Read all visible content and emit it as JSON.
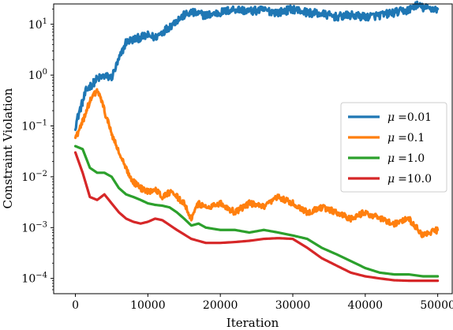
{
  "chart_data": {
    "type": "line",
    "xlabel": "Iteration",
    "ylabel": "Constraint Violation",
    "xlim": [
      -3000,
      52000
    ],
    "ylim_log10": [
      -4.3,
      1.4
    ],
    "yscale": "log",
    "x_ticks": [
      0,
      10000,
      20000,
      30000,
      40000,
      50000
    ],
    "x_tick_labels": [
      "0",
      "10000",
      "20000",
      "30000",
      "40000",
      "50000"
    ],
    "y_ticks_log10": [
      -4,
      -3,
      -2,
      -1,
      0,
      1
    ],
    "y_tick_base": "10",
    "y_tick_exponents": [
      "−4",
      "−3",
      "−2",
      "−1",
      "0",
      "1"
    ],
    "legend_position": "center right",
    "series": [
      {
        "name": "μ =0.01",
        "legend_symbol": "μ",
        "legend_value": "=0.01",
        "color": "#1f77b4",
        "noise": 0.08,
        "x": [
          0,
          500,
          1000,
          1500,
          2000,
          2500,
          3000,
          3500,
          4000,
          5000,
          6000,
          7000,
          8000,
          9000,
          10000,
          11000,
          12000,
          13000,
          14000,
          15000,
          16000,
          17000,
          18000,
          20000,
          22000,
          24000,
          26000,
          28000,
          30000,
          32000,
          34000,
          36000,
          38000,
          40000,
          42000,
          44000,
          46000,
          47000,
          48000,
          50000
        ],
        "y": [
          0.1,
          0.18,
          0.3,
          0.5,
          0.6,
          0.7,
          0.85,
          0.9,
          0.95,
          0.9,
          2.0,
          4.5,
          5.0,
          5.5,
          6.0,
          5.5,
          7.0,
          9.0,
          12.0,
          15.0,
          17.0,
          16.0,
          15.0,
          17.0,
          20.0,
          18.0,
          19.0,
          17.0,
          20.0,
          17.0,
          16.0,
          14.0,
          15.0,
          14.0,
          15.0,
          17.0,
          19.0,
          24.0,
          21.0,
          20.0
        ]
      },
      {
        "name": "μ =0.1",
        "legend_symbol": "μ",
        "legend_value": "=0.1",
        "color": "#ff7f0e",
        "noise": 0.06,
        "x": [
          0,
          500,
          1000,
          1500,
          2000,
          2500,
          3000,
          3500,
          4000,
          4500,
          5000,
          6000,
          7000,
          8000,
          9000,
          10000,
          11000,
          12000,
          13000,
          14000,
          15000,
          16000,
          17000,
          18000,
          20000,
          22000,
          24000,
          26000,
          28000,
          30000,
          32000,
          34000,
          36000,
          38000,
          40000,
          42000,
          44000,
          46000,
          48000,
          50000
        ],
        "y": [
          0.06,
          0.08,
          0.12,
          0.2,
          0.3,
          0.4,
          0.5,
          0.35,
          0.2,
          0.12,
          0.07,
          0.03,
          0.014,
          0.008,
          0.006,
          0.005,
          0.006,
          0.004,
          0.005,
          0.004,
          0.003,
          0.0015,
          0.003,
          0.0025,
          0.003,
          0.002,
          0.003,
          0.0025,
          0.004,
          0.003,
          0.002,
          0.0025,
          0.002,
          0.0015,
          0.002,
          0.0015,
          0.0012,
          0.0015,
          0.0007,
          0.0009
        ]
      },
      {
        "name": "μ =1.0",
        "legend_symbol": "μ",
        "legend_value": "=1.0",
        "color": "#2ca02c",
        "noise": 0.0,
        "x": [
          0,
          1000,
          2000,
          3000,
          4000,
          5000,
          6000,
          7000,
          8000,
          9000,
          10000,
          11000,
          12000,
          13000,
          14000,
          15000,
          16000,
          17000,
          18000,
          20000,
          22000,
          24000,
          26000,
          28000,
          30000,
          32000,
          34000,
          36000,
          38000,
          40000,
          42000,
          44000,
          46000,
          48000,
          50000
        ],
        "y": [
          0.04,
          0.035,
          0.015,
          0.012,
          0.012,
          0.01,
          0.006,
          0.0045,
          0.004,
          0.0035,
          0.003,
          0.0028,
          0.0027,
          0.0025,
          0.002,
          0.0015,
          0.0011,
          0.0012,
          0.001,
          0.0009,
          0.0009,
          0.0008,
          0.0009,
          0.0008,
          0.0007,
          0.0006,
          0.0004,
          0.0003,
          0.00022,
          0.00016,
          0.00013,
          0.00012,
          0.00012,
          0.00011,
          0.00011
        ]
      },
      {
        "name": "μ =10.0",
        "legend_symbol": "μ",
        "legend_value": "=10.0",
        "color": "#d62728",
        "noise": 0.0,
        "x": [
          0,
          1000,
          2000,
          3000,
          4000,
          5000,
          6000,
          7000,
          8000,
          9000,
          10000,
          11000,
          12000,
          14000,
          16000,
          18000,
          20000,
          22000,
          24000,
          26000,
          28000,
          30000,
          32000,
          34000,
          36000,
          38000,
          40000,
          42000,
          44000,
          46000,
          48000,
          50000
        ],
        "y": [
          0.03,
          0.012,
          0.004,
          0.0035,
          0.0045,
          0.003,
          0.002,
          0.0015,
          0.0013,
          0.0012,
          0.0013,
          0.0015,
          0.0014,
          0.0009,
          0.0006,
          0.0005,
          0.0005,
          0.00052,
          0.00055,
          0.0006,
          0.00062,
          0.0006,
          0.0004,
          0.00025,
          0.00018,
          0.00013,
          0.00011,
          0.0001,
          9.2e-05,
          9e-05,
          9e-05,
          9e-05
        ]
      }
    ]
  }
}
